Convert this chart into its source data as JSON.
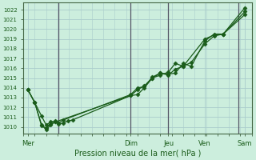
{
  "bg_color": "#cceedd",
  "grid_color": "#aacccc",
  "line_color": "#1a5c1a",
  "marker_color": "#1a5c1a",
  "xlabel_text": "Pression niveau de la mer( hPa )",
  "yticks": [
    1010,
    1011,
    1012,
    1013,
    1014,
    1015,
    1016,
    1017,
    1018,
    1019,
    1020,
    1021,
    1022
  ],
  "ylim": [
    1009.3,
    1022.7
  ],
  "xlim": [
    0,
    1.0
  ],
  "vline_color": "#555566",
  "vline_positions": [
    0.155,
    0.47,
    0.635,
    0.94
  ],
  "xtick_labels": [
    "Mer",
    "Dim",
    "Jeu",
    "Ven",
    "Sam"
  ],
  "xtick_positions": [
    0.02,
    0.47,
    0.635,
    0.795,
    0.97
  ],
  "series": {
    "line1_x": [
      0.02,
      0.05,
      0.08,
      0.1,
      0.12,
      0.14,
      0.155,
      0.175,
      0.195,
      0.215,
      0.47,
      0.5,
      0.53,
      0.565,
      0.6,
      0.635,
      0.665,
      0.7,
      0.735,
      0.795,
      0.835,
      0.875,
      0.97
    ],
    "line1_y": [
      1013.8,
      1012.5,
      1010.2,
      1009.7,
      1010.2,
      1010.5,
      1010.3,
      1010.4,
      1010.6,
      1010.7,
      1013.2,
      1013.8,
      1014.2,
      1015.0,
      1015.5,
      1015.3,
      1015.9,
      1016.2,
      1016.6,
      1018.5,
      1019.3,
      1019.5,
      1022.2
    ],
    "line2_x": [
      0.02,
      0.05,
      0.08,
      0.1,
      0.12,
      0.14,
      0.155,
      0.175,
      0.47,
      0.5,
      0.53,
      0.565,
      0.6,
      0.635,
      0.665,
      0.7,
      0.735,
      0.795,
      0.835,
      0.875,
      0.97
    ],
    "line2_y": [
      1013.8,
      1012.5,
      1011.1,
      1010.2,
      1010.5,
      1010.6,
      1010.4,
      1010.7,
      1013.3,
      1014.0,
      1014.1,
      1015.1,
      1015.5,
      1015.4,
      1015.5,
      1016.5,
      1016.2,
      1018.8,
      1019.5,
      1019.5,
      1021.5
    ],
    "line3_x": [
      0.02,
      0.05,
      0.08,
      0.1,
      0.12,
      0.14,
      0.47,
      0.5,
      0.53,
      0.565,
      0.6,
      0.635,
      0.665,
      0.7,
      0.795,
      0.835,
      0.875,
      0.97
    ],
    "line3_y": [
      1013.8,
      1012.5,
      1010.1,
      1009.9,
      1010.3,
      1010.5,
      1013.2,
      1013.3,
      1014.0,
      1015.0,
      1015.3,
      1015.6,
      1016.5,
      1016.2,
      1019.0,
      1019.4,
      1019.5,
      1021.8
    ]
  }
}
